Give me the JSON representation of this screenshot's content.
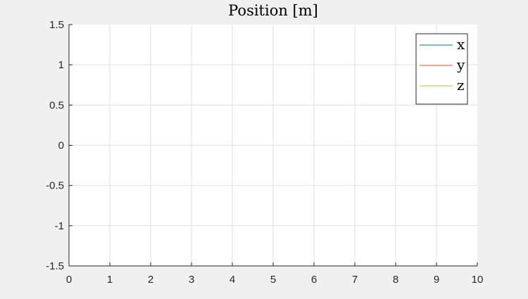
{
  "chart_data": {
    "type": "line",
    "title": "Position [m]",
    "xlabel": "",
    "ylabel": "",
    "xlim": [
      0,
      10
    ],
    "ylim": [
      -1.5,
      1.5
    ],
    "x_ticks": [
      0,
      1,
      2,
      3,
      4,
      5,
      6,
      7,
      8,
      9,
      10
    ],
    "x_tick_labels": [
      "0",
      "1",
      "2",
      "3",
      "4",
      "5",
      "6",
      "7",
      "8",
      "9",
      "10"
    ],
    "y_ticks": [
      -1.5,
      -1,
      -0.5,
      0,
      0.5,
      1,
      1.5
    ],
    "y_tick_labels": [
      "-1.5",
      "-1",
      "-0.5",
      "0",
      "0.5",
      "1",
      "1.5"
    ],
    "grid": true,
    "legend_position": "top-right",
    "series": [
      {
        "name": "x",
        "color": "#0072bd",
        "x": [],
        "values": []
      },
      {
        "name": "y",
        "color": "#d95319",
        "x": [],
        "values": []
      },
      {
        "name": "z",
        "color": "#edb120",
        "x": [],
        "values": []
      }
    ]
  }
}
